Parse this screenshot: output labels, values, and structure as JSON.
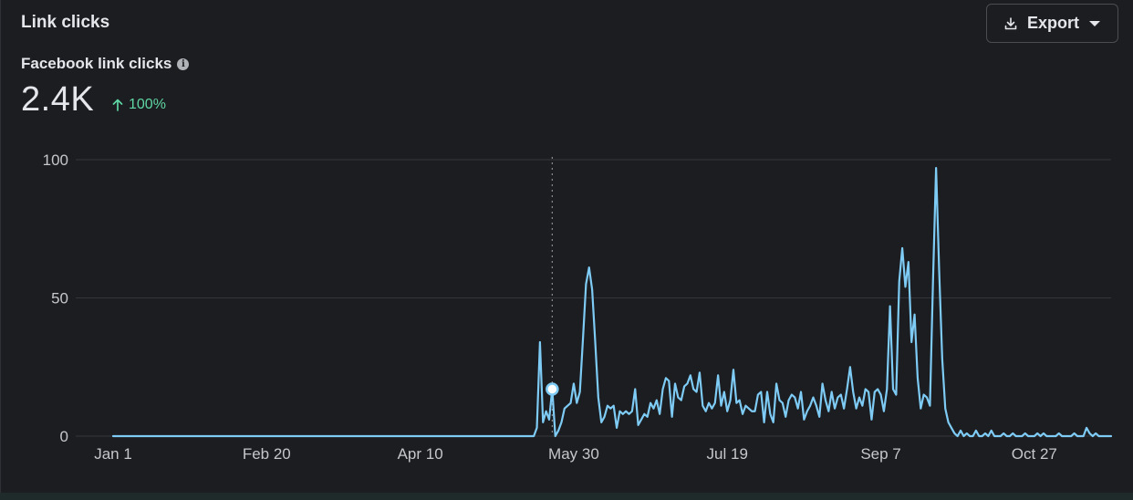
{
  "header": {
    "title": "Link clicks",
    "export_label": "Export"
  },
  "metric": {
    "label": "Facebook link clicks",
    "value": "2.4K",
    "change": "100%",
    "change_direction": "up"
  },
  "colors": {
    "line": "#7ecbf5",
    "positive": "#5fd6a4",
    "background": "#1c1d20"
  },
  "chart_data": {
    "type": "line",
    "x_tick_labels": [
      "Jan 1",
      "Feb 20",
      "Apr 10",
      "May 30",
      "Jul 19",
      "Sep 7",
      "Oct 27"
    ],
    "y_tick_labels": [
      "0",
      "50",
      "100"
    ],
    "ylim": [
      0,
      100
    ],
    "x_range_days": [
      0,
      325
    ],
    "grid": true,
    "highlight_day": 143,
    "series": [
      {
        "points": [
          [
            0,
            0
          ],
          [
            137,
            0
          ],
          [
            138,
            3
          ],
          [
            139,
            34
          ],
          [
            140,
            5
          ],
          [
            141,
            9
          ],
          [
            142,
            6
          ],
          [
            143,
            17
          ],
          [
            144,
            0
          ],
          [
            145,
            2
          ],
          [
            146,
            5
          ],
          [
            147,
            10
          ],
          [
            148,
            11
          ],
          [
            149,
            12
          ],
          [
            150,
            19
          ],
          [
            151,
            12
          ],
          [
            152,
            16
          ],
          [
            153,
            35
          ],
          [
            154,
            55
          ],
          [
            155,
            61
          ],
          [
            156,
            53
          ],
          [
            157,
            34
          ],
          [
            158,
            14
          ],
          [
            159,
            5
          ],
          [
            160,
            7
          ],
          [
            161,
            11
          ],
          [
            162,
            10
          ],
          [
            163,
            11
          ],
          [
            164,
            3
          ],
          [
            165,
            9
          ],
          [
            166,
            8
          ],
          [
            167,
            9
          ],
          [
            168,
            8
          ],
          [
            169,
            9
          ],
          [
            170,
            17
          ],
          [
            171,
            4
          ],
          [
            172,
            6
          ],
          [
            173,
            8
          ],
          [
            174,
            7
          ],
          [
            175,
            12
          ],
          [
            176,
            10
          ],
          [
            177,
            13
          ],
          [
            178,
            8
          ],
          [
            179,
            17
          ],
          [
            180,
            21
          ],
          [
            181,
            20
          ],
          [
            182,
            7
          ],
          [
            183,
            19
          ],
          [
            184,
            14
          ],
          [
            185,
            13
          ],
          [
            186,
            18
          ],
          [
            187,
            19
          ],
          [
            188,
            22
          ],
          [
            189,
            17
          ],
          [
            190,
            16
          ],
          [
            191,
            23
          ],
          [
            192,
            11
          ],
          [
            193,
            9
          ],
          [
            194,
            12
          ],
          [
            195,
            10
          ],
          [
            196,
            12
          ],
          [
            197,
            22
          ],
          [
            198,
            11
          ],
          [
            199,
            16
          ],
          [
            200,
            9
          ],
          [
            201,
            13
          ],
          [
            202,
            24
          ],
          [
            203,
            12
          ],
          [
            204,
            13
          ],
          [
            205,
            8
          ],
          [
            206,
            11
          ],
          [
            207,
            10
          ],
          [
            208,
            9
          ],
          [
            209,
            9
          ],
          [
            210,
            15
          ],
          [
            211,
            16
          ],
          [
            212,
            5
          ],
          [
            213,
            16
          ],
          [
            214,
            8
          ],
          [
            215,
            5
          ],
          [
            216,
            19
          ],
          [
            217,
            13
          ],
          [
            218,
            12
          ],
          [
            219,
            7
          ],
          [
            220,
            13
          ],
          [
            221,
            15
          ],
          [
            222,
            14
          ],
          [
            223,
            10
          ],
          [
            224,
            16
          ],
          [
            225,
            6
          ],
          [
            226,
            9
          ],
          [
            227,
            11
          ],
          [
            228,
            14
          ],
          [
            229,
            11
          ],
          [
            230,
            7
          ],
          [
            231,
            19
          ],
          [
            232,
            13
          ],
          [
            233,
            9
          ],
          [
            234,
            16
          ],
          [
            235,
            10
          ],
          [
            236,
            14
          ],
          [
            237,
            15
          ],
          [
            238,
            10
          ],
          [
            239,
            17
          ],
          [
            240,
            25
          ],
          [
            241,
            16
          ],
          [
            242,
            10
          ],
          [
            243,
            14
          ],
          [
            244,
            11
          ],
          [
            245,
            17
          ],
          [
            246,
            16
          ],
          [
            247,
            6
          ],
          [
            248,
            16
          ],
          [
            249,
            17
          ],
          [
            250,
            15
          ],
          [
            251,
            9
          ],
          [
            252,
            17
          ],
          [
            253,
            47
          ],
          [
            254,
            17
          ],
          [
            255,
            15
          ],
          [
            256,
            56
          ],
          [
            257,
            68
          ],
          [
            258,
            54
          ],
          [
            259,
            63
          ],
          [
            260,
            34
          ],
          [
            261,
            44
          ],
          [
            262,
            21
          ],
          [
            263,
            10
          ],
          [
            264,
            15
          ],
          [
            265,
            14
          ],
          [
            266,
            11
          ],
          [
            267,
            56
          ],
          [
            268,
            97
          ],
          [
            269,
            60
          ],
          [
            270,
            28
          ],
          [
            271,
            10
          ],
          [
            272,
            5
          ],
          [
            273,
            3
          ],
          [
            274,
            1
          ],
          [
            275,
            0
          ],
          [
            276,
            2
          ],
          [
            277,
            0
          ],
          [
            278,
            1
          ],
          [
            279,
            0
          ],
          [
            280,
            0
          ],
          [
            281,
            2
          ],
          [
            282,
            0
          ],
          [
            283,
            0
          ],
          [
            284,
            1
          ],
          [
            285,
            0
          ],
          [
            286,
            2
          ],
          [
            287,
            0
          ],
          [
            288,
            0
          ],
          [
            289,
            0
          ],
          [
            290,
            1
          ],
          [
            291,
            0
          ],
          [
            292,
            0
          ],
          [
            293,
            1
          ],
          [
            294,
            0
          ],
          [
            295,
            0
          ],
          [
            296,
            0
          ],
          [
            297,
            1
          ],
          [
            298,
            0
          ],
          [
            299,
            0
          ],
          [
            300,
            0
          ],
          [
            301,
            1
          ],
          [
            302,
            0
          ],
          [
            303,
            1
          ],
          [
            304,
            0
          ],
          [
            305,
            0
          ],
          [
            306,
            0
          ],
          [
            307,
            0
          ],
          [
            308,
            1
          ],
          [
            309,
            0
          ],
          [
            310,
            0
          ],
          [
            311,
            0
          ],
          [
            312,
            0
          ],
          [
            313,
            1
          ],
          [
            314,
            0
          ],
          [
            315,
            0
          ],
          [
            316,
            0
          ],
          [
            317,
            3
          ],
          [
            318,
            1
          ],
          [
            319,
            0
          ],
          [
            320,
            1
          ],
          [
            321,
            0
          ],
          [
            322,
            0
          ],
          [
            323,
            0
          ],
          [
            324,
            0
          ],
          [
            325,
            0
          ]
        ]
      }
    ]
  }
}
